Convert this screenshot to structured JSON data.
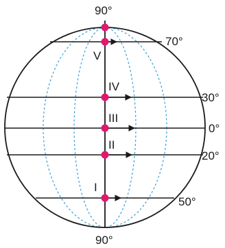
{
  "labels": {
    "north_pole": "90°",
    "south_pole": "90°",
    "lat_70": "70°",
    "lat_30": "30°",
    "lat_0": "0°",
    "lat_20": "20°",
    "lat_50": "50°"
  },
  "points": [
    {
      "roman": "V"
    },
    {
      "roman": "IV"
    },
    {
      "roman": "III"
    },
    {
      "roman": "II"
    },
    {
      "roman": "I"
    }
  ],
  "colors": {
    "outline": "#1a1a1a",
    "meridian": "#3aa0d8",
    "point": "#e0186e"
  }
}
